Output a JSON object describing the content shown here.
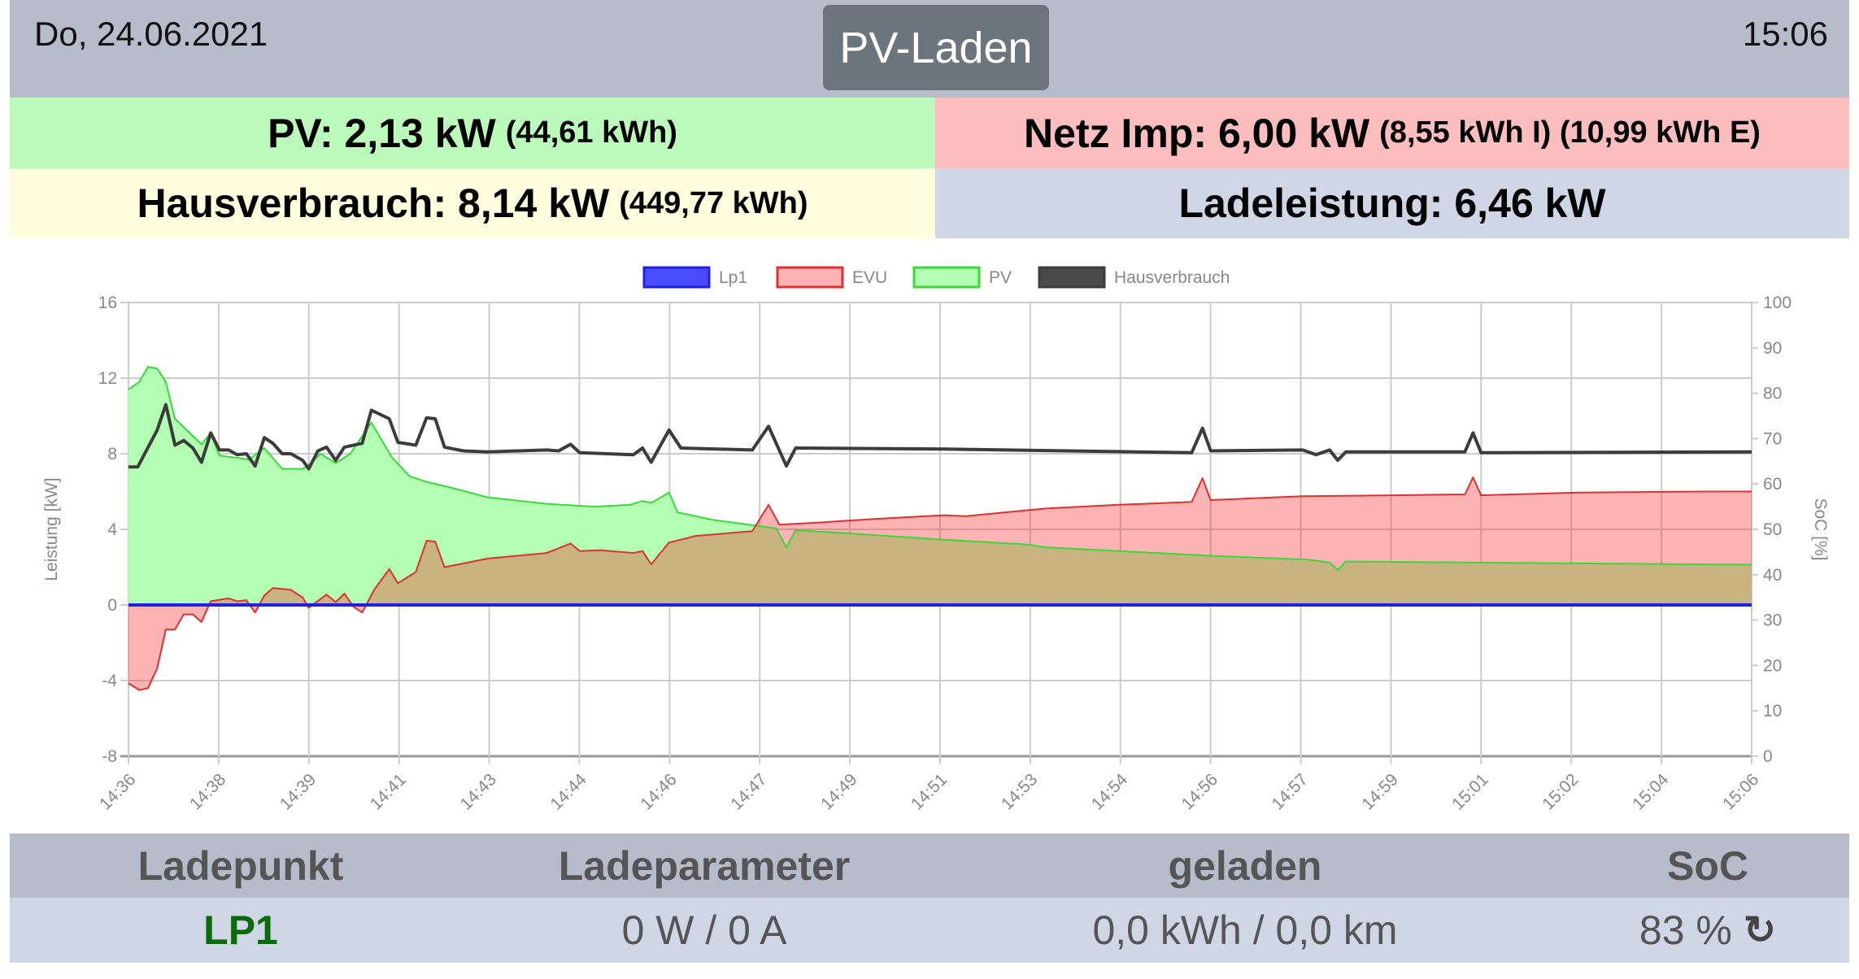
{
  "header": {
    "date": "Do, 24.06.2021",
    "mode": "PV-Laden",
    "time": "15:06"
  },
  "status": {
    "pv": {
      "label": "PV: 2,13 kW",
      "detail": "(44,61 kWh)"
    },
    "netz": {
      "label": "Netz Imp: 6,00 kW",
      "detail": "(8,55 kWh I) (10,99 kWh E)"
    },
    "haus": {
      "label": "Hausverbrauch: 8,14 kW",
      "detail": "(449,77 kWh)"
    },
    "lade": {
      "label": "Ladeleistung: 6,46 kW"
    }
  },
  "table": {
    "headers": [
      "Ladepunkt",
      "Ladeparameter",
      "geladen",
      "SoC"
    ],
    "row": {
      "ladepunkt": "LP1",
      "parameter": "0 W / 0 A",
      "geladen": "0,0 kWh / 0,0 km",
      "soc": "83 %",
      "soc_icon": "refresh-icon"
    }
  },
  "chart_data": {
    "type": "line",
    "x_unit": "minutes after 14:36",
    "x_tick_labels": [
      "14:36",
      "14:38",
      "14:39",
      "14:41",
      "14:43",
      "14:44",
      "14:46",
      "14:47",
      "14:49",
      "14:51",
      "14:53",
      "14:54",
      "14:56",
      "14:57",
      "14:59",
      "15:01",
      "15:02",
      "15:04",
      "15:06"
    ],
    "xlim": [
      0,
      30
    ],
    "ylabel": "Leistung [kW]",
    "ylim": [
      -8,
      16
    ],
    "y_ticks": [
      16,
      12,
      8,
      4,
      0,
      -4,
      -8
    ],
    "y2label": "SoC [%]",
    "y2lim": [
      0,
      100
    ],
    "y2_ticks": [
      100,
      90,
      80,
      70,
      60,
      50,
      40,
      30,
      20,
      10,
      0
    ],
    "grid": true,
    "legend_position": "top",
    "series": [
      {
        "name": "Lp1",
        "color": "#2020e0",
        "fill": "#4a4aff",
        "x": [
          0,
          30
        ],
        "y": [
          0,
          0
        ]
      },
      {
        "name": "EVU",
        "color": "#e03030",
        "fill": "#fbb3b3",
        "x": [
          0,
          0.2,
          0.36,
          0.53,
          0.69,
          0.86,
          1.02,
          1.19,
          1.35,
          1.52,
          1.85,
          2.01,
          2.18,
          2.34,
          2.51,
          2.67,
          3.0,
          3.22,
          3.33,
          3.66,
          3.83,
          3.99,
          4.16,
          4.32,
          4.54,
          4.82,
          4.98,
          5.31,
          5.51,
          5.67,
          5.84,
          6.19,
          6.63,
          7.18,
          7.73,
          8.17,
          8.34,
          8.72,
          9.33,
          9.5,
          9.66,
          9.99,
          10.48,
          11.53,
          11.83,
          12.03,
          12.69,
          13.79,
          15.08,
          15.48,
          16.95,
          18.3,
          19.65,
          19.85,
          20.0,
          21.7,
          23.4,
          24.7,
          24.85,
          25.0,
          26.8,
          29.1,
          30
        ],
        "y": [
          -4.15,
          -4.5,
          -4.4,
          -3.35,
          -1.3,
          -1.3,
          -0.5,
          -0.5,
          -0.9,
          0.2,
          0.35,
          0.2,
          0.25,
          -0.4,
          0.5,
          0.9,
          0.8,
          0.4,
          -0.15,
          0.55,
          0.15,
          0.6,
          -0.1,
          -0.4,
          0.8,
          1.9,
          1.15,
          1.75,
          3.4,
          3.35,
          2.0,
          2.2,
          2.45,
          2.6,
          2.75,
          3.25,
          2.85,
          2.9,
          2.75,
          2.85,
          2.15,
          3.3,
          3.65,
          3.9,
          5.3,
          4.25,
          4.35,
          4.55,
          4.75,
          4.7,
          5.1,
          5.3,
          5.45,
          6.7,
          5.55,
          5.75,
          5.8,
          5.85,
          6.75,
          5.8,
          5.95,
          6.0,
          6.0
        ]
      },
      {
        "name": "PV",
        "color": "#3ad83a",
        "fill": "#b3ffb3",
        "x": [
          0,
          0.2,
          0.36,
          0.53,
          0.69,
          0.86,
          1.35,
          1.52,
          1.68,
          2.23,
          2.51,
          2.84,
          3.22,
          3.33,
          3.55,
          3.83,
          4.1,
          4.49,
          4.87,
          5.2,
          5.53,
          5.97,
          6.63,
          7.73,
          8.61,
          9.27,
          9.5,
          9.66,
          9.99,
          10.15,
          10.81,
          11.97,
          12.16,
          12.33,
          13.24,
          15.08,
          16.6,
          16.95,
          18.3,
          20.0,
          21.8,
          22.2,
          22.35,
          22.5,
          24.6,
          26.8,
          30
        ],
        "y": [
          11.4,
          11.8,
          12.6,
          12.5,
          11.8,
          9.85,
          8.5,
          9.1,
          7.9,
          7.7,
          8.3,
          7.2,
          7.2,
          7.4,
          8.0,
          7.5,
          8.0,
          9.65,
          7.8,
          6.8,
          6.5,
          6.2,
          5.7,
          5.35,
          5.2,
          5.3,
          5.5,
          5.4,
          5.95,
          4.9,
          4.5,
          4.05,
          3.05,
          3.95,
          3.8,
          3.45,
          3.2,
          3.05,
          2.85,
          2.6,
          2.4,
          2.25,
          1.85,
          2.3,
          2.25,
          2.2,
          2.13
        ]
      },
      {
        "name": "Hausverbrauch",
        "color": "#3c3c3c",
        "fill": "#4a4a4a",
        "x": [
          0,
          0.17,
          0.53,
          0.69,
          0.86,
          1.02,
          1.19,
          1.35,
          1.52,
          1.68,
          1.85,
          2.01,
          2.18,
          2.34,
          2.51,
          2.67,
          2.84,
          3.0,
          3.22,
          3.33,
          3.5,
          3.66,
          3.83,
          3.99,
          4.32,
          4.49,
          4.82,
          4.98,
          5.31,
          5.51,
          5.67,
          5.84,
          6.19,
          6.63,
          7.73,
          7.95,
          8.17,
          8.34,
          9.33,
          9.5,
          9.66,
          9.99,
          10.21,
          11.53,
          11.83,
          12.16,
          12.33,
          15.08,
          19.65,
          19.85,
          20.0,
          21.7,
          21.95,
          22.2,
          22.35,
          22.5,
          24.7,
          24.85,
          25.0,
          30
        ],
        "y": [
          7.3,
          7.3,
          9.25,
          10.6,
          8.45,
          8.7,
          8.3,
          7.55,
          9.1,
          8.2,
          8.2,
          7.95,
          8.0,
          7.35,
          8.85,
          8.55,
          8.0,
          8.0,
          7.65,
          7.2,
          8.15,
          8.35,
          7.65,
          8.35,
          8.55,
          10.3,
          9.85,
          8.6,
          8.45,
          9.9,
          9.85,
          8.35,
          8.15,
          8.1,
          8.2,
          8.15,
          8.5,
          8.05,
          7.95,
          8.3,
          7.55,
          9.25,
          8.3,
          8.2,
          9.45,
          7.35,
          8.3,
          8.25,
          8.05,
          9.35,
          8.15,
          8.2,
          7.95,
          8.2,
          7.65,
          8.1,
          8.1,
          9.1,
          8.05,
          8.1
        ]
      }
    ]
  }
}
